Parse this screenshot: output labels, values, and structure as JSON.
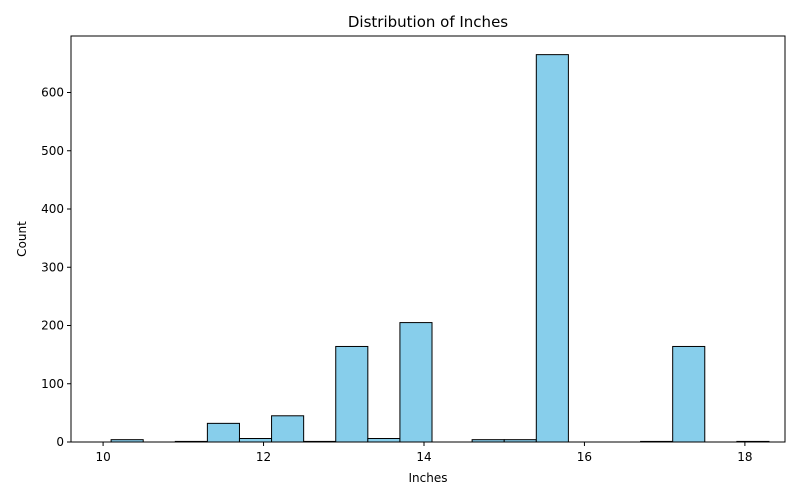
{
  "chart_data": {
    "type": "bar",
    "title": "Distribution of Inches",
    "xlabel": "Inches",
    "ylabel": "Count",
    "xlim": [
      9.6,
      18.5
    ],
    "ylim": [
      0,
      697
    ],
    "xticks": [
      10,
      12,
      14,
      16,
      18
    ],
    "yticks": [
      0,
      100,
      200,
      300,
      400,
      500,
      600
    ],
    "bar_color": "#87CEEB",
    "edge_color": "#000000",
    "grid": false,
    "bins": [
      {
        "x0": 10.1,
        "x1": 10.5,
        "count": 4
      },
      {
        "x0": 10.9,
        "x1": 11.3,
        "count": 1
      },
      {
        "x0": 11.3,
        "x1": 11.7,
        "count": 32
      },
      {
        "x0": 11.7,
        "x1": 12.1,
        "count": 6
      },
      {
        "x0": 12.1,
        "x1": 12.5,
        "count": 45
      },
      {
        "x0": 12.5,
        "x1": 12.9,
        "count": 1
      },
      {
        "x0": 12.9,
        "x1": 13.3,
        "count": 164
      },
      {
        "x0": 13.3,
        "x1": 13.7,
        "count": 6
      },
      {
        "x0": 13.7,
        "x1": 14.1,
        "count": 205
      },
      {
        "x0": 14.6,
        "x1": 15.0,
        "count": 4
      },
      {
        "x0": 15.0,
        "x1": 15.4,
        "count": 4
      },
      {
        "x0": 15.4,
        "x1": 15.8,
        "count": 665
      },
      {
        "x0": 16.7,
        "x1": 17.1,
        "count": 1
      },
      {
        "x0": 17.1,
        "x1": 17.5,
        "count": 164
      },
      {
        "x0": 17.9,
        "x1": 18.3,
        "count": 1
      }
    ]
  }
}
